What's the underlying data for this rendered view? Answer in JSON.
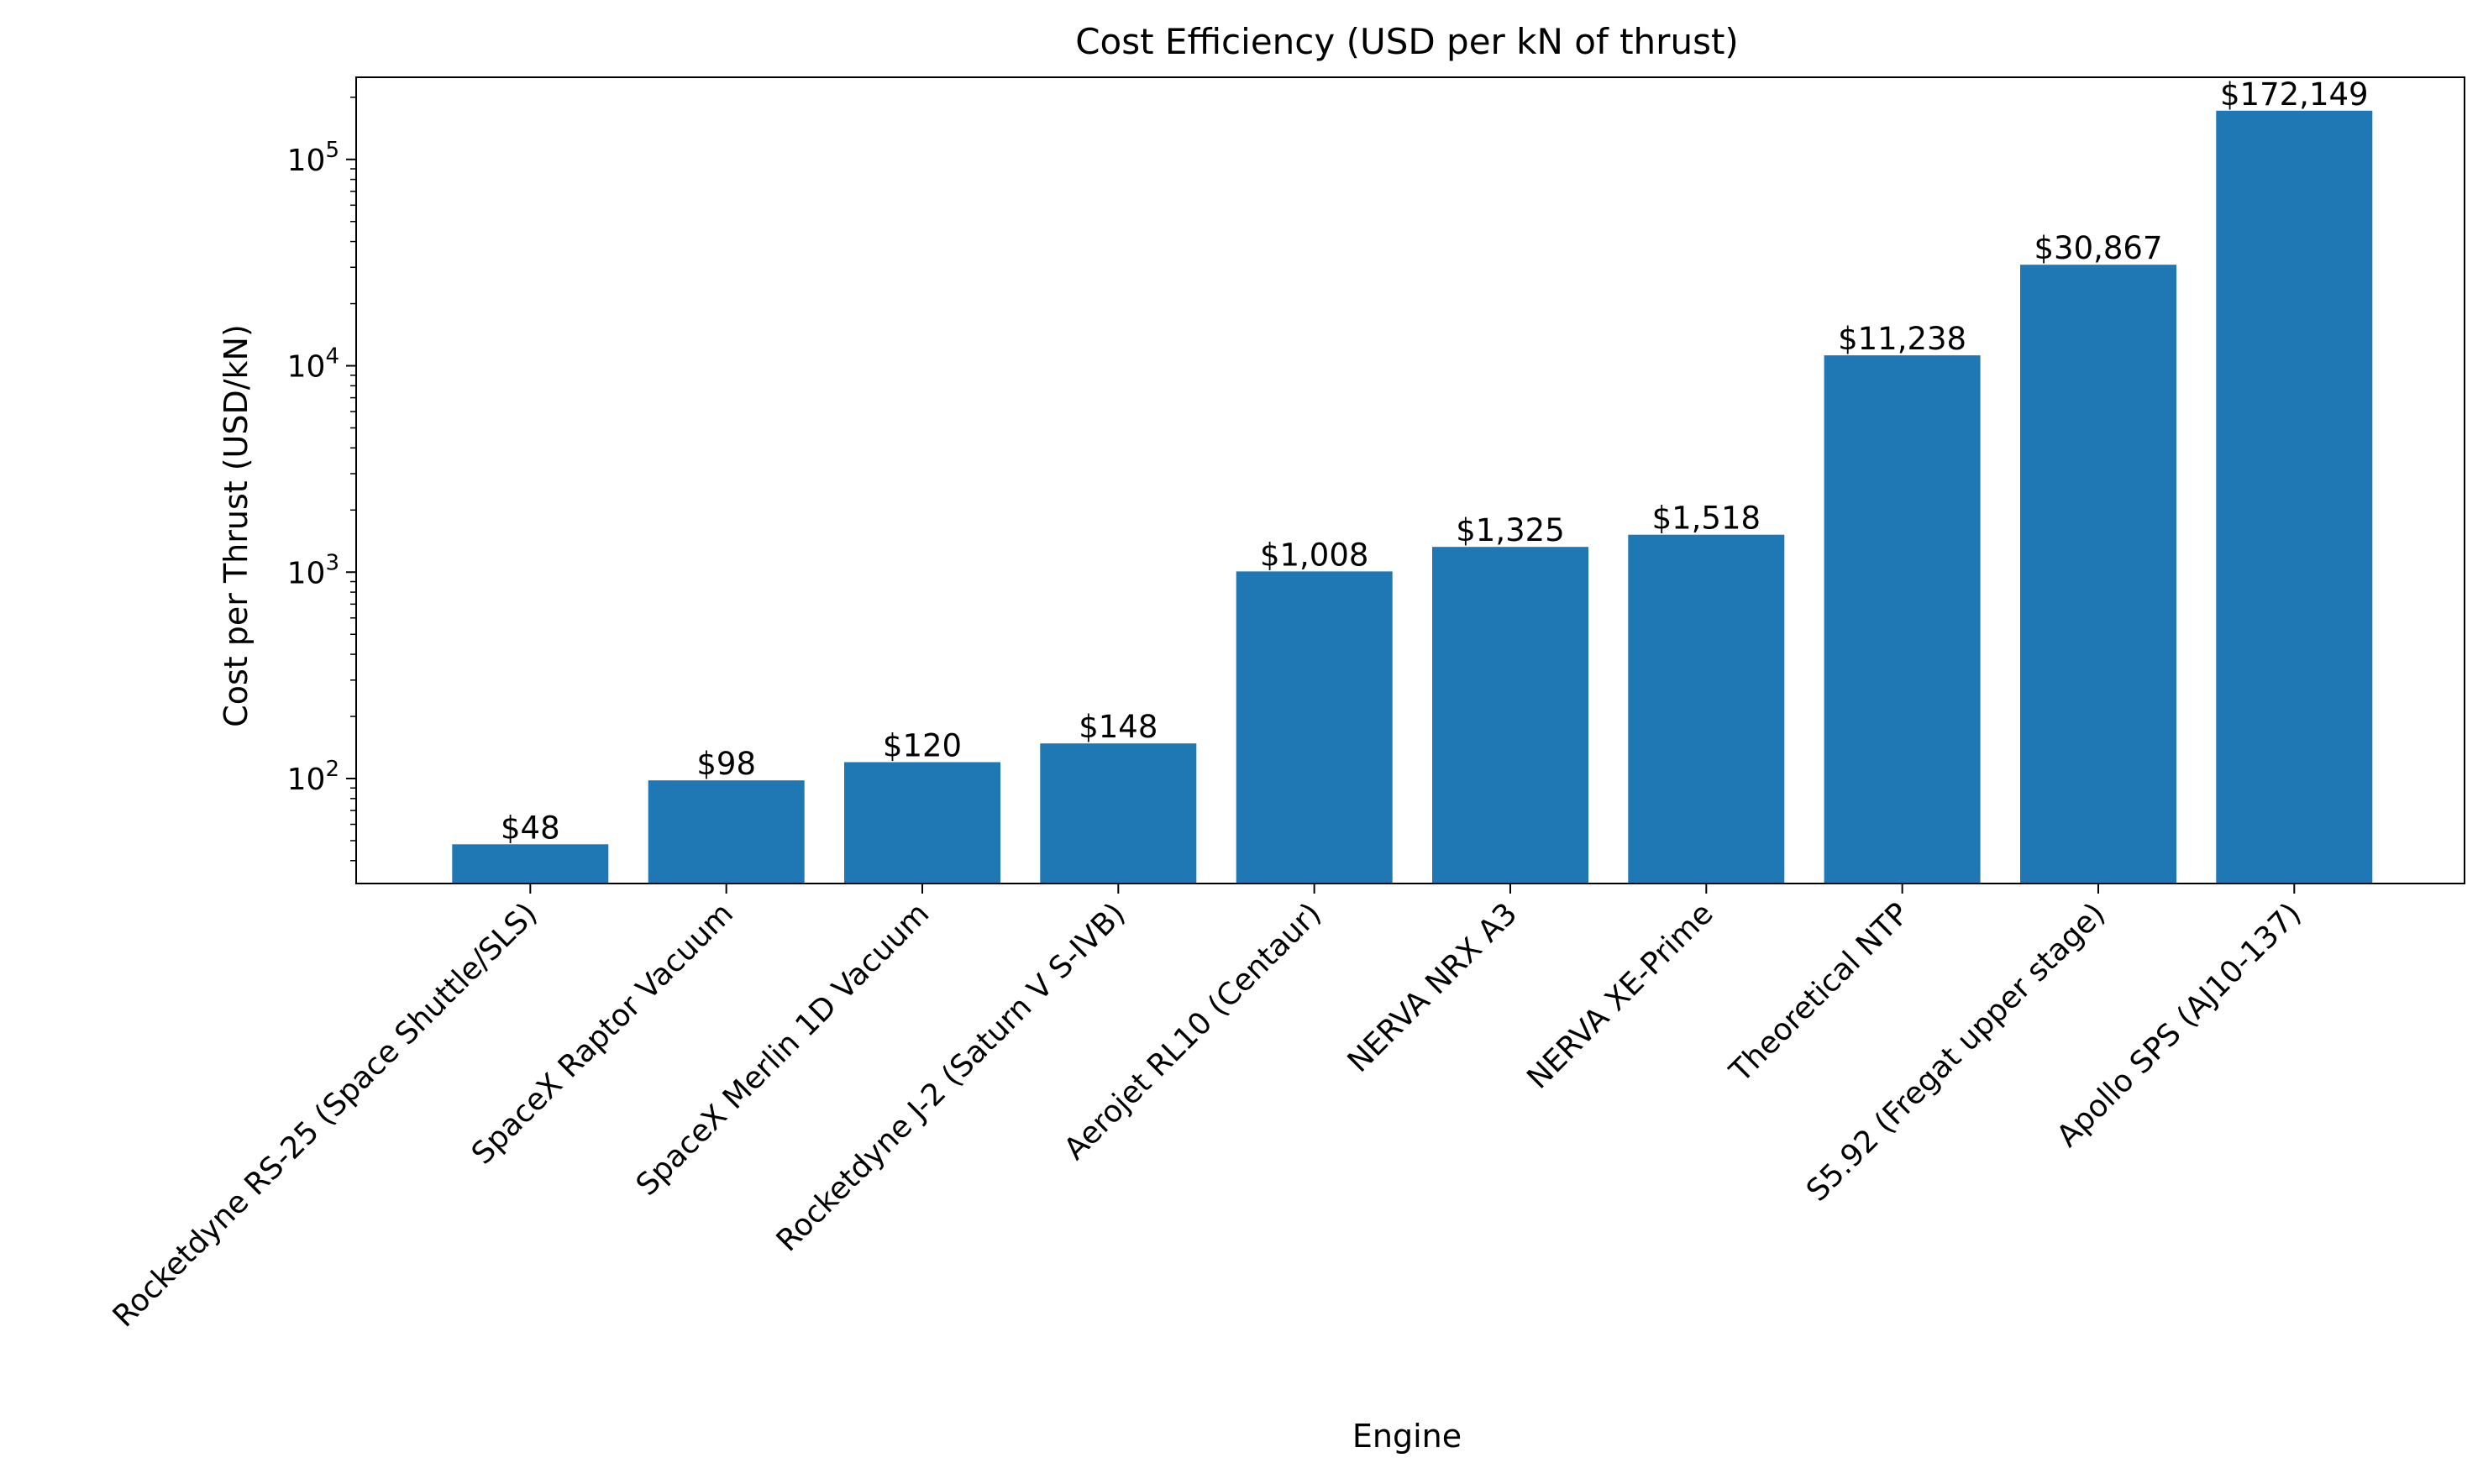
{
  "chart_data": {
    "type": "bar",
    "title": "Cost Efficiency (USD per kN of thrust)",
    "xlabel": "Engine",
    "ylabel": "Cost per Thrust (USD/kN)",
    "yscale": "log",
    "ylim": [
      31,
      250000
    ],
    "yticks": [
      {
        "value": 100,
        "base": "10",
        "exp": "2"
      },
      {
        "value": 1000,
        "base": "10",
        "exp": "3"
      },
      {
        "value": 10000,
        "base": "10",
        "exp": "4"
      },
      {
        "value": 100000,
        "base": "10",
        "exp": "5"
      }
    ],
    "grid": false,
    "legend": "none",
    "bar_color": "#1f77b4",
    "categories": [
      "Rocketdyne RS-25 (Space Shuttle/SLS)",
      "SpaceX Raptor Vacuum",
      "SpaceX Merlin 1D Vacuum",
      "Rocketdyne J-2 (Saturn V S-IVB)",
      "Aerojet RL10 (Centaur)",
      "NERVA NRX A3",
      "NERVA XE-Prime",
      "Theoretical NTP",
      "S5.92 (Fregat upper stage)",
      "Apollo SPS (AJ10-137)"
    ],
    "values": [
      48,
      98,
      120,
      148,
      1008,
      1325,
      1518,
      11238,
      30867,
      172149
    ],
    "data_labels": [
      "$48",
      "$98",
      "$120",
      "$148",
      "$1,008",
      "$1,325",
      "$1,518",
      "$11,238",
      "$30,867",
      "$172,149"
    ]
  }
}
